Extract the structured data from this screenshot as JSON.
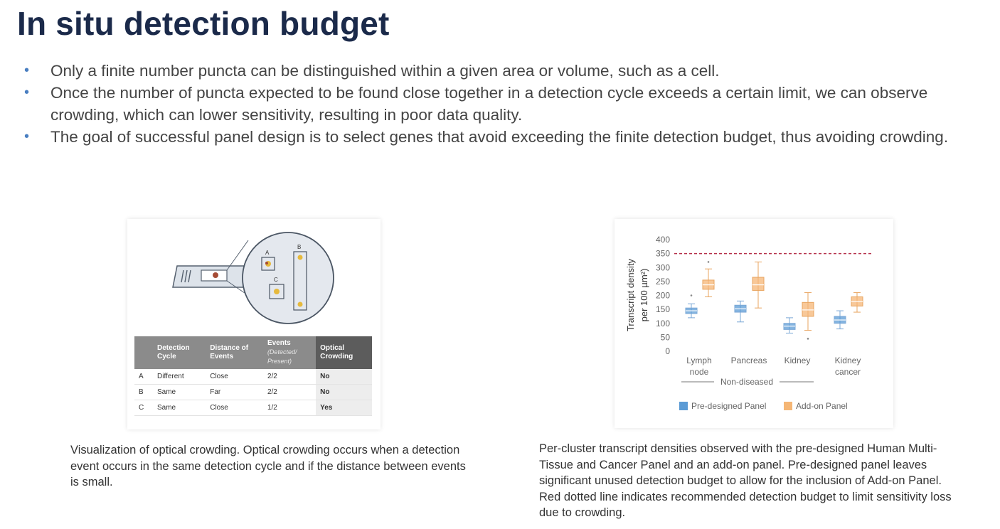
{
  "slide": {
    "title": "In situ detection budget",
    "bullets": [
      "Only a finite number puncta can be distinguished within a given area or volume, such as a cell.",
      "Once the number of puncta expected to be found close together in a detection cycle exceeds a certain limit, we can observe crowding, which can lower sensitivity, resulting in poor data quality.",
      "The goal of successful panel design is to select genes that avoid exceeding the finite detection budget, thus avoiding crowding."
    ]
  },
  "figure_left": {
    "diagram_labels": {
      "a": "A",
      "b": "B",
      "c": "C"
    },
    "table": {
      "headers": [
        "Detection Cycle",
        "Distance of Events",
        "Events",
        "Optical Crowding"
      ],
      "events_sub": "(Detected/ Present)",
      "rows": [
        {
          "id": "A",
          "cycle": "Different",
          "distance": "Close",
          "events": "2/2",
          "crowding": "No"
        },
        {
          "id": "B",
          "cycle": "Same",
          "distance": "Far",
          "events": "2/2",
          "crowding": "No"
        },
        {
          "id": "C",
          "cycle": "Same",
          "distance": "Close",
          "events": "1/2",
          "crowding": "Yes"
        }
      ]
    },
    "caption": "Visualization of optical crowding. Optical crowding occurs when a detection event occurs in the same detection cycle and if the distance between events is small."
  },
  "chart_data": {
    "type": "box",
    "ylabel_line1": "Transcript density",
    "ylabel_line2": "per 100 µm²)",
    "ylim": [
      0,
      400
    ],
    "yticks": [
      "0",
      "50",
      "100",
      "150",
      "200",
      "250",
      "300",
      "350",
      "400"
    ],
    "categories": [
      {
        "line1": "Lymph",
        "line2": "node"
      },
      {
        "line1": "Pancreas",
        "line2": ""
      },
      {
        "line1": "Kidney",
        "line2": ""
      },
      {
        "line1": "Kidney",
        "line2": "cancer"
      }
    ],
    "group_label": "Non-diseased",
    "threshold": 350,
    "series": [
      {
        "name": "Pre-designed Panel",
        "color": "#5b9bd5",
        "boxes": [
          {
            "min": 120,
            "q1": 135,
            "median": 145,
            "q3": 155,
            "max": 170,
            "outliers": [
              200
            ]
          },
          {
            "min": 105,
            "q1": 140,
            "median": 152,
            "q3": 165,
            "max": 180,
            "outliers": []
          },
          {
            "min": 65,
            "q1": 78,
            "median": 90,
            "q3": 100,
            "max": 120,
            "outliers": []
          },
          {
            "min": 80,
            "q1": 100,
            "median": 112,
            "q3": 125,
            "max": 145,
            "outliers": []
          }
        ]
      },
      {
        "name": "Add-on Panel",
        "color": "#f5b675",
        "boxes": [
          {
            "min": 195,
            "q1": 222,
            "median": 238,
            "q3": 255,
            "max": 295,
            "outliers": [
              320
            ]
          },
          {
            "min": 155,
            "q1": 218,
            "median": 238,
            "q3": 265,
            "max": 320,
            "outliers": []
          },
          {
            "min": 75,
            "q1": 125,
            "median": 148,
            "q3": 175,
            "max": 210,
            "outliers": [
              45
            ]
          },
          {
            "min": 140,
            "q1": 162,
            "median": 178,
            "q3": 195,
            "max": 210,
            "outliers": []
          }
        ]
      }
    ],
    "legend": [
      "Pre-designed Panel",
      "Add-on Panel"
    ],
    "threshold_color": "#b5304a",
    "caption": "Per-cluster transcript densities observed with the pre-designed Human Multi-Tissue and Cancer Panel and an add-on panel. Pre-designed panel leaves significant unused detection budget to allow for the inclusion of Add-on Panel. Red dotted line indicates recommended detection budget to limit sensitivity loss due to crowding."
  }
}
